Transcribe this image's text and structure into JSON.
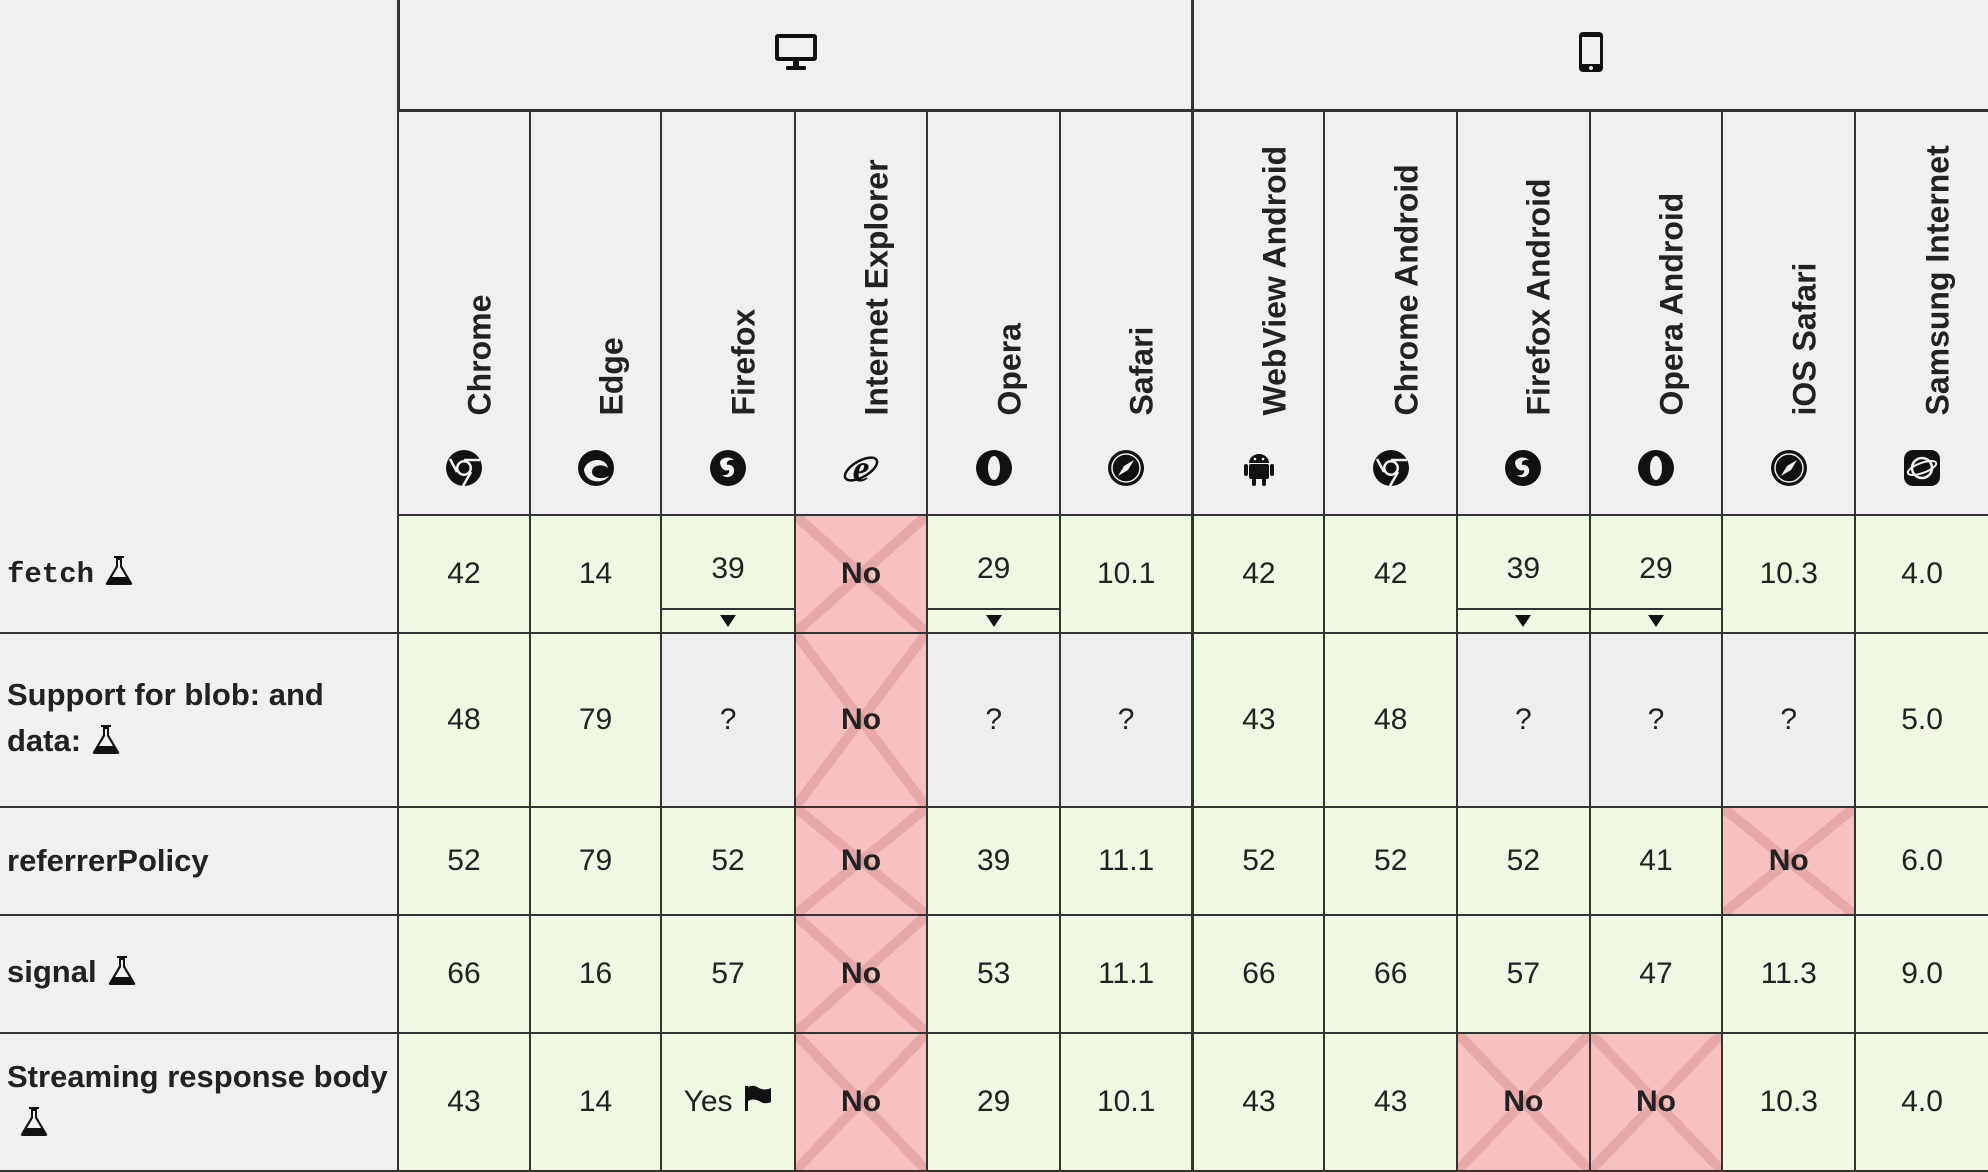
{
  "platforms": [
    {
      "name": "desktop",
      "icon": "desktop-icon"
    },
    {
      "name": "mobile",
      "icon": "mobile-icon"
    }
  ],
  "browsers": [
    {
      "name": "Chrome",
      "icon": "chrome-icon"
    },
    {
      "name": "Edge",
      "icon": "edge-icon"
    },
    {
      "name": "Firefox",
      "icon": "firefox-icon"
    },
    {
      "name": "Internet Explorer",
      "icon": "ie-icon"
    },
    {
      "name": "Opera",
      "icon": "opera-icon"
    },
    {
      "name": "Safari",
      "icon": "safari-icon"
    },
    {
      "name": "WebView Android",
      "icon": "android-icon"
    },
    {
      "name": "Chrome Android",
      "icon": "chrome-icon"
    },
    {
      "name": "Firefox Android",
      "icon": "firefox-icon"
    },
    {
      "name": "Opera Android",
      "icon": "opera-icon"
    },
    {
      "name": "iOS Safari",
      "icon": "safari-icon"
    },
    {
      "name": "Samsung Internet",
      "icon": "samsung-internet-icon"
    }
  ],
  "features": [
    {
      "name": "fetch",
      "code": true,
      "experimental": true,
      "cells": [
        {
          "text": "42",
          "status": "yes"
        },
        {
          "text": "14",
          "status": "yes"
        },
        {
          "text": "39",
          "status": "yes",
          "notes": true
        },
        {
          "text": "No",
          "status": "no"
        },
        {
          "text": "29",
          "status": "yes",
          "notes": true
        },
        {
          "text": "10.1",
          "status": "yes"
        },
        {
          "text": "42",
          "status": "yes"
        },
        {
          "text": "42",
          "status": "yes"
        },
        {
          "text": "39",
          "status": "yes",
          "notes": true
        },
        {
          "text": "29",
          "status": "yes",
          "notes": true
        },
        {
          "text": "10.3",
          "status": "yes"
        },
        {
          "text": "4.0",
          "status": "yes"
        }
      ]
    },
    {
      "name": "Support for blob: and",
      "name_line2": "data:",
      "code": false,
      "experimental": true,
      "cells": [
        {
          "text": "48",
          "status": "yes"
        },
        {
          "text": "79",
          "status": "yes"
        },
        {
          "text": "?",
          "status": "unk"
        },
        {
          "text": "No",
          "status": "no"
        },
        {
          "text": "?",
          "status": "unk"
        },
        {
          "text": "?",
          "status": "unk"
        },
        {
          "text": "43",
          "status": "yes"
        },
        {
          "text": "48",
          "status": "yes"
        },
        {
          "text": "?",
          "status": "unk"
        },
        {
          "text": "?",
          "status": "unk"
        },
        {
          "text": "?",
          "status": "unk"
        },
        {
          "text": "5.0",
          "status": "yes"
        }
      ]
    },
    {
      "name": "referrerPolicy",
      "code": false,
      "experimental": false,
      "cells": [
        {
          "text": "52",
          "status": "yes"
        },
        {
          "text": "79",
          "status": "yes"
        },
        {
          "text": "52",
          "status": "yes"
        },
        {
          "text": "No",
          "status": "no"
        },
        {
          "text": "39",
          "status": "yes"
        },
        {
          "text": "11.1",
          "status": "yes"
        },
        {
          "text": "52",
          "status": "yes"
        },
        {
          "text": "52",
          "status": "yes"
        },
        {
          "text": "52",
          "status": "yes"
        },
        {
          "text": "41",
          "status": "yes"
        },
        {
          "text": "No",
          "status": "no"
        },
        {
          "text": "6.0",
          "status": "yes"
        }
      ]
    },
    {
      "name": "signal",
      "code": false,
      "experimental": true,
      "cells": [
        {
          "text": "66",
          "status": "yes"
        },
        {
          "text": "16",
          "status": "yes"
        },
        {
          "text": "57",
          "status": "yes"
        },
        {
          "text": "No",
          "status": "no"
        },
        {
          "text": "53",
          "status": "yes"
        },
        {
          "text": "11.1",
          "status": "yes"
        },
        {
          "text": "66",
          "status": "yes"
        },
        {
          "text": "66",
          "status": "yes"
        },
        {
          "text": "57",
          "status": "yes"
        },
        {
          "text": "47",
          "status": "yes"
        },
        {
          "text": "11.3",
          "status": "yes"
        },
        {
          "text": "9.0",
          "status": "yes"
        }
      ]
    },
    {
      "name": "Streaming response body",
      "name_line2": "",
      "code": false,
      "experimental": true,
      "experimental_on_line2": true,
      "cells": [
        {
          "text": "43",
          "status": "yes"
        },
        {
          "text": "14",
          "status": "yes"
        },
        {
          "text": "Yes",
          "status": "yes",
          "flag": true
        },
        {
          "text": "No",
          "status": "no"
        },
        {
          "text": "29",
          "status": "yes"
        },
        {
          "text": "10.1",
          "status": "yes"
        },
        {
          "text": "43",
          "status": "yes"
        },
        {
          "text": "43",
          "status": "yes"
        },
        {
          "text": "No",
          "status": "no"
        },
        {
          "text": "No",
          "status": "no"
        },
        {
          "text": "10.3",
          "status": "yes"
        },
        {
          "text": "4.0",
          "status": "yes"
        }
      ]
    }
  ]
}
